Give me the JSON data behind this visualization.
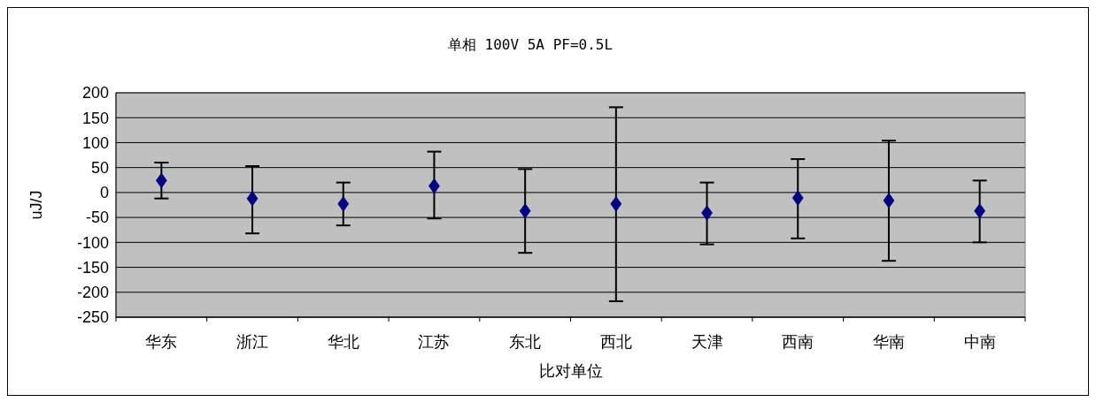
{
  "chart_data": {
    "type": "scatter",
    "title": "单相 100V 5A PF=0.5L",
    "xlabel": "比对单位",
    "ylabel": "uJ/J",
    "categories": [
      "华东",
      "浙江",
      "华北",
      "江苏",
      "东北",
      "西北",
      "天津",
      "西南",
      "华南",
      "中南"
    ],
    "values": [
      24,
      -12,
      -23,
      13,
      -37,
      -23,
      -41,
      -11,
      -16,
      -37
    ],
    "errors": [
      [
        -12,
        60
      ],
      [
        -82,
        53
      ],
      [
        -66,
        20
      ],
      [
        -52,
        82
      ],
      [
        -121,
        47
      ],
      [
        -218,
        171
      ],
      [
        -104,
        20
      ],
      [
        -92,
        67
      ],
      [
        -137,
        104
      ],
      [
        -100,
        24
      ]
    ],
    "color": "#000080",
    "marker": "diamond",
    "ylim": [
      -250,
      200
    ],
    "yticks": [
      -250,
      -200,
      -150,
      -100,
      -50,
      0,
      50,
      100,
      150,
      200
    ],
    "grid": "y"
  }
}
